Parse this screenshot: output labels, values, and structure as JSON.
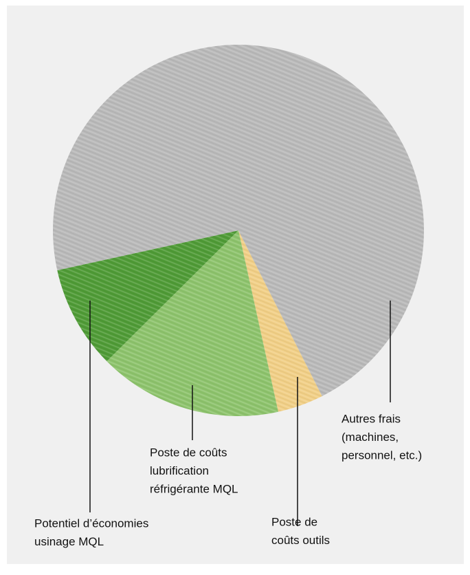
{
  "chart_data": {
    "type": "pie",
    "categories": [
      [
        "Poste de",
        "coûts outils"
      ],
      [
        "Poste de coûts",
        "lubrification",
        "réfrigérante MQL"
      ],
      [
        "Potentiel d’économies",
        "usinage MQL"
      ],
      [
        "Autres frais",
        "(machines,",
        "personnel, etc.)"
      ]
    ],
    "values": [
      4,
      16,
      9,
      71
    ],
    "colors": [
      "#f1cf86",
      "#8dc36c",
      "#4f9b36",
      "#b9b9b9"
    ]
  }
}
